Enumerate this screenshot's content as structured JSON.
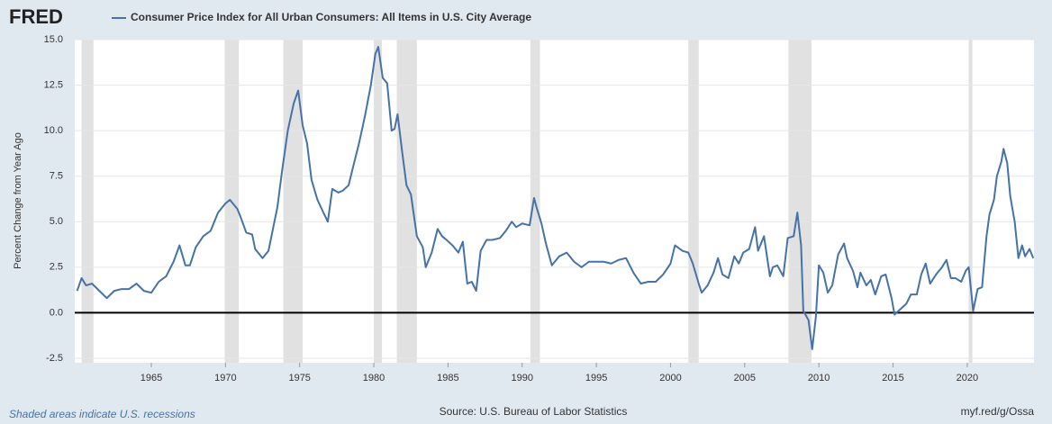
{
  "chart_data": {
    "type": "line",
    "logo": "FRED",
    "y_label": "Percent Change from Year Ago",
    "note": "Shaded areas indicate U.S. recessions",
    "source": "Source: U.S. Bureau of Labor Statistics",
    "link": "myf.red/g/Ossa",
    "xlim": [
      1959.84,
      2024.5
    ],
    "xticks": [
      1965,
      1970,
      1975,
      1980,
      1985,
      1990,
      1995,
      2000,
      2005,
      2010,
      2015,
      2020
    ],
    "ylim": [
      -2.75,
      15
    ],
    "yticks": [
      -2.5,
      {
        "value": 0,
        "label": "0.0"
      },
      2.5,
      {
        "value": 5,
        "label": "5.0"
      },
      7.5,
      {
        "value": 10,
        "label": "10.0"
      },
      12.5,
      {
        "value": 15,
        "label": "15.0"
      }
    ],
    "grid": true,
    "recession_color": "#e1e1e1",
    "recessions": [
      {
        "start": 1960.3,
        "end": 1961.1
      },
      {
        "start": 1969.95,
        "end": 1970.9
      },
      {
        "start": 1973.9,
        "end": 1975.2
      },
      {
        "start": 1980.0,
        "end": 1980.55
      },
      {
        "start": 1981.55,
        "end": 1982.9
      },
      {
        "start": 1990.55,
        "end": 1991.2
      },
      {
        "start": 2001.2,
        "end": 2001.9
      },
      {
        "start": 2007.95,
        "end": 2009.5
      },
      {
        "start": 2020.1,
        "end": 2020.35
      }
    ],
    "x": [
      1960.0,
      1960.3,
      1960.6,
      1961.0,
      1961.5,
      1962.0,
      1962.5,
      1963.0,
      1963.5,
      1964.0,
      1964.5,
      1965.0,
      1965.5,
      1966.0,
      1966.5,
      1966.9,
      1967.3,
      1967.6,
      1968.0,
      1968.5,
      1969.0,
      1969.5,
      1970.0,
      1970.3,
      1970.8,
      1971.0,
      1971.4,
      1971.8,
      1972.0,
      1972.5,
      1972.9,
      1973.2,
      1973.5,
      1973.8,
      1974.2,
      1974.6,
      1974.9,
      1975.2,
      1975.5,
      1975.8,
      1976.2,
      1976.6,
      1976.9,
      1977.2,
      1977.6,
      1977.9,
      1978.3,
      1978.6,
      1979.0,
      1979.4,
      1979.8,
      1980.1,
      1980.3,
      1980.6,
      1980.9,
      1981.2,
      1981.4,
      1981.6,
      1981.9,
      1982.2,
      1982.5,
      1982.9,
      1983.3,
      1983.5,
      1983.9,
      1984.3,
      1984.6,
      1984.9,
      1985.3,
      1985.7,
      1986.0,
      1986.3,
      1986.6,
      1986.9,
      1987.2,
      1987.6,
      1988.0,
      1988.5,
      1988.9,
      1989.3,
      1989.6,
      1990.0,
      1990.5,
      1990.8,
      1991.0,
      1991.3,
      1991.6,
      1992.0,
      1992.5,
      1993.0,
      1993.5,
      1994.0,
      1994.5,
      1995.0,
      1995.5,
      1996.0,
      1996.5,
      1997.0,
      1997.5,
      1998.0,
      1998.5,
      1999.0,
      1999.5,
      2000.0,
      2000.3,
      2000.8,
      2001.2,
      2001.5,
      2001.9,
      2002.1,
      2002.5,
      2002.9,
      2003.2,
      2003.5,
      2003.9,
      2004.3,
      2004.6,
      2004.9,
      2005.3,
      2005.7,
      2005.9,
      2006.3,
      2006.7,
      2006.9,
      2007.2,
      2007.6,
      2007.9,
      2008.3,
      2008.55,
      2008.8,
      2008.95,
      2009.3,
      2009.55,
      2009.8,
      2010.0,
      2010.3,
      2010.6,
      2010.9,
      2011.3,
      2011.7,
      2011.9,
      2012.3,
      2012.6,
      2012.8,
      2013.2,
      2013.5,
      2013.8,
      2014.2,
      2014.5,
      2014.9,
      2015.1,
      2015.5,
      2015.9,
      2016.2,
      2016.6,
      2016.9,
      2017.2,
      2017.5,
      2017.9,
      2018.3,
      2018.6,
      2018.9,
      2019.2,
      2019.6,
      2019.9,
      2020.1,
      2020.4,
      2020.7,
      2021.0,
      2021.3,
      2021.5,
      2021.8,
      2022.0,
      2022.3,
      2022.45,
      2022.7,
      2022.9,
      2023.2,
      2023.45,
      2023.7,
      2023.9,
      2024.2,
      2024.45
    ],
    "series": [
      {
        "name": "Consumer Price Index for All Urban Consumers: All Items in U.S. City Average",
        "color": "#4572a7",
        "values": [
          1.2,
          1.9,
          1.5,
          1.6,
          1.2,
          0.8,
          1.2,
          1.3,
          1.3,
          1.6,
          1.2,
          1.1,
          1.7,
          2.0,
          2.8,
          3.7,
          2.6,
          2.6,
          3.6,
          4.2,
          4.5,
          5.5,
          6.0,
          6.2,
          5.7,
          5.3,
          4.4,
          4.3,
          3.5,
          3.0,
          3.4,
          4.6,
          5.8,
          7.7,
          10.0,
          11.5,
          12.2,
          10.3,
          9.3,
          7.3,
          6.2,
          5.5,
          5.0,
          6.8,
          6.6,
          6.7,
          7.0,
          8.0,
          9.3,
          10.8,
          12.5,
          14.2,
          14.6,
          12.9,
          12.6,
          10.0,
          10.1,
          10.9,
          8.9,
          7.0,
          6.5,
          4.2,
          3.6,
          2.5,
          3.3,
          4.6,
          4.2,
          4.0,
          3.7,
          3.3,
          3.9,
          1.6,
          1.7,
          1.2,
          3.4,
          4.0,
          4.0,
          4.1,
          4.5,
          5.0,
          4.7,
          4.9,
          4.8,
          6.3,
          5.7,
          4.9,
          3.8,
          2.6,
          3.1,
          3.3,
          2.8,
          2.5,
          2.8,
          2.8,
          2.8,
          2.7,
          2.9,
          3.0,
          2.2,
          1.6,
          1.7,
          1.7,
          2.1,
          2.7,
          3.7,
          3.4,
          3.3,
          2.7,
          1.6,
          1.1,
          1.5,
          2.2,
          3.0,
          2.1,
          1.9,
          3.1,
          2.7,
          3.3,
          3.5,
          4.7,
          3.4,
          4.2,
          2.0,
          2.5,
          2.6,
          2.0,
          4.1,
          4.2,
          5.5,
          3.7,
          0.1,
          -0.4,
          -2.0,
          -0.2,
          2.6,
          2.2,
          1.1,
          1.5,
          3.2,
          3.8,
          3.0,
          2.3,
          1.4,
          2.2,
          1.5,
          1.8,
          1.0,
          2.0,
          2.1,
          0.8,
          -0.1,
          0.2,
          0.5,
          1.0,
          1.0,
          2.1,
          2.7,
          1.6,
          2.1,
          2.5,
          2.9,
          1.9,
          1.9,
          1.7,
          2.3,
          2.5,
          0.1,
          1.3,
          1.4,
          4.2,
          5.4,
          6.2,
          7.5,
          8.3,
          9.0,
          8.2,
          6.4,
          5.0,
          3.0,
          3.7,
          3.1,
          3.5,
          3.0
        ]
      }
    ]
  }
}
